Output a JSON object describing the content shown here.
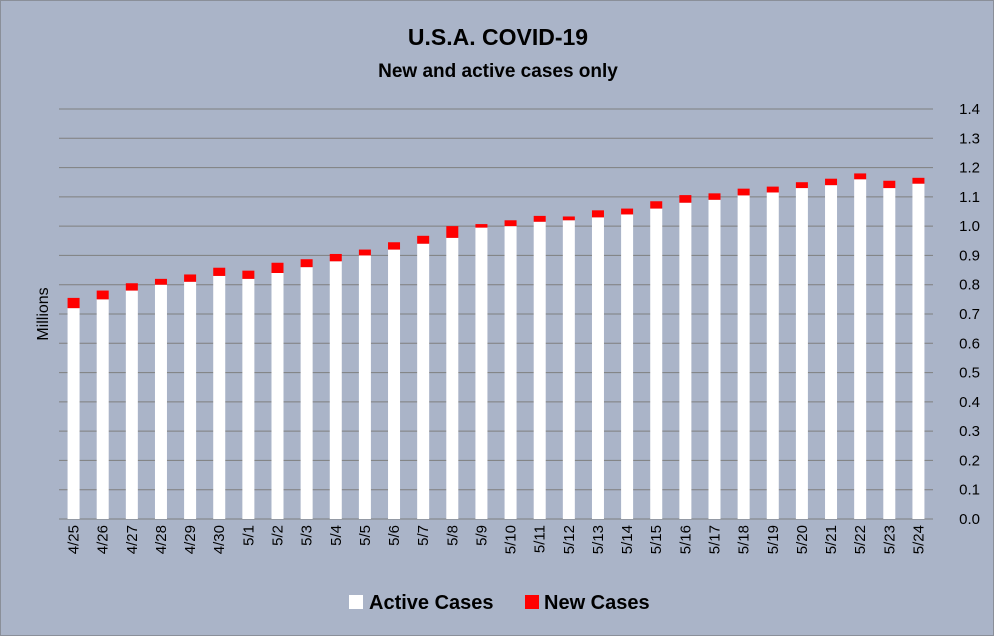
{
  "chart_data": {
    "type": "bar",
    "stacked": true,
    "title": "U.S.A. COVID-19",
    "subtitle": "New and active cases only",
    "ylabel": "Millions",
    "xlabel": "",
    "ylim": [
      0,
      1.4
    ],
    "y_ticks": [
      "0.0",
      "0.1",
      "0.2",
      "0.3",
      "0.4",
      "0.5",
      "0.6",
      "0.7",
      "0.8",
      "0.9",
      "1.0",
      "1.1",
      "1.2",
      "1.3",
      "1.4"
    ],
    "y_axis_side": "right",
    "grid": true,
    "legend_position": "bottom",
    "categories": [
      "4/25",
      "4/26",
      "4/27",
      "4/28",
      "4/29",
      "4/30",
      "5/1",
      "5/2",
      "5/3",
      "5/4",
      "5/5",
      "5/6",
      "5/7",
      "5/8",
      "5/9",
      "5/10",
      "5/11",
      "5/12",
      "5/13",
      "5/14",
      "5/15",
      "5/16",
      "5/17",
      "5/18",
      "5/19",
      "5/20",
      "5/21",
      "5/22",
      "5/23",
      "5/24"
    ],
    "series": [
      {
        "name": "Active Cases",
        "color": "#ffffff",
        "values": [
          0.72,
          0.75,
          0.78,
          0.8,
          0.81,
          0.83,
          0.82,
          0.84,
          0.86,
          0.88,
          0.9,
          0.92,
          0.94,
          0.96,
          0.995,
          1.0,
          1.015,
          1.02,
          1.03,
          1.04,
          1.06,
          1.08,
          1.09,
          1.105,
          1.115,
          1.13,
          1.14,
          1.16,
          1.13,
          1.145
        ]
      },
      {
        "name": "New Cases",
        "color": "#ff0000",
        "values": [
          0.035,
          0.03,
          0.025,
          0.02,
          0.025,
          0.028,
          0.028,
          0.035,
          0.027,
          0.025,
          0.02,
          0.025,
          0.027,
          0.04,
          0.012,
          0.02,
          0.02,
          0.013,
          0.024,
          0.02,
          0.025,
          0.026,
          0.022,
          0.023,
          0.02,
          0.02,
          0.022,
          0.02,
          0.025,
          0.02
        ]
      }
    ]
  },
  "colors": {
    "background": "#aab4c8",
    "gridline": "#7f7f7f"
  }
}
